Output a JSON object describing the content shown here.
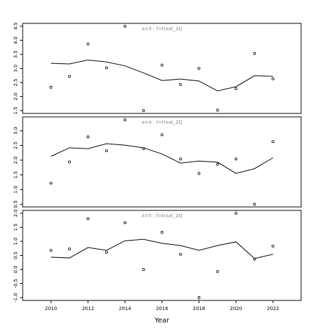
{
  "chart_data": [
    {
      "type": "scatter",
      "title": "a=3 : f=traal_2Q",
      "x": [
        2010,
        2011,
        2012,
        2013,
        2014,
        2015,
        2016,
        2017,
        2018,
        2019,
        2020,
        2021,
        2022
      ],
      "series": [
        {
          "style": "points",
          "color": "#000000",
          "values": [
            2.33,
            2.72,
            3.87,
            3.02,
            4.5,
            1.5,
            3.12,
            2.43,
            3.0,
            1.52,
            2.28,
            3.53,
            2.63
          ]
        },
        {
          "style": "line",
          "color": "#000000",
          "values": [
            3.18,
            3.16,
            3.3,
            3.23,
            3.09,
            2.84,
            2.57,
            2.62,
            2.55,
            2.2,
            2.35,
            2.74,
            2.72
          ]
        }
      ],
      "xlim": [
        2008.47,
        2023.52
      ],
      "ylim": [
        1.4,
        4.6
      ],
      "yticks": [
        1.5,
        {
          "value": 2,
          "label": "2.0"
        },
        2.5,
        {
          "value": 3,
          "label": "3.0"
        },
        3.5,
        {
          "value": 4,
          "label": "4.0"
        },
        4.5
      ]
    },
    {
      "type": "scatter",
      "title": "a=4 : f=traal_2Q",
      "x": [
        2010,
        2011,
        2012,
        2013,
        2014,
        2015,
        2016,
        2017,
        2018,
        2019,
        2020,
        2021,
        2022
      ],
      "series": [
        {
          "style": "points",
          "color": "#000000",
          "values": [
            1.22,
            1.94,
            2.79,
            2.32,
            3.37,
            2.39,
            2.86,
            2.04,
            1.55,
            1.86,
            2.04,
            0.5,
            2.63
          ]
        },
        {
          "style": "line",
          "color": "#000000",
          "values": [
            2.13,
            2.42,
            2.39,
            2.56,
            2.51,
            2.42,
            2.21,
            1.9,
            1.97,
            1.93,
            1.55,
            1.71,
            2.08
          ]
        }
      ],
      "xlim": [
        2008.47,
        2023.52
      ],
      "ylim": [
        0.41,
        3.47
      ],
      "yticks": [
        0.5,
        {
          "value": 1,
          "label": "1.0"
        },
        1.5,
        {
          "value": 2,
          "label": "2.0"
        },
        2.5,
        {
          "value": 3,
          "label": "3.0"
        }
      ]
    },
    {
      "type": "scatter",
      "title": "a=5 : f=traal_2Q",
      "x": [
        2010,
        2011,
        2012,
        2013,
        2014,
        2015,
        2016,
        2017,
        2018,
        2019,
        2020,
        2021,
        2022
      ],
      "series": [
        {
          "style": "points",
          "color": "#000000",
          "values": [
            0.68,
            0.73,
            1.8,
            0.61,
            1.66,
            0.0,
            1.32,
            0.54,
            -1.0,
            -0.07,
            2.0,
            0.37,
            0.83
          ]
        },
        {
          "style": "line",
          "color": "#000000",
          "values": [
            0.44,
            0.41,
            0.78,
            0.68,
            1.02,
            1.07,
            0.93,
            0.85,
            0.68,
            0.85,
            0.98,
            0.39,
            0.54
          ]
        }
      ],
      "xlim": [
        2008.47,
        2023.52
      ],
      "ylim": [
        -1.1,
        2.1
      ],
      "yticks": [
        {
          "value": -1,
          "label": "-1.0"
        },
        -0.5,
        {
          "value": 0,
          "label": "0.0"
        },
        0.5,
        {
          "value": 1,
          "label": "1.0"
        },
        1.5,
        {
          "value": 2,
          "label": "2.0"
        }
      ],
      "xticks": [
        2010,
        2012,
        2014,
        2016,
        2018,
        2020,
        2022
      ],
      "xlabel": "Year"
    }
  ]
}
